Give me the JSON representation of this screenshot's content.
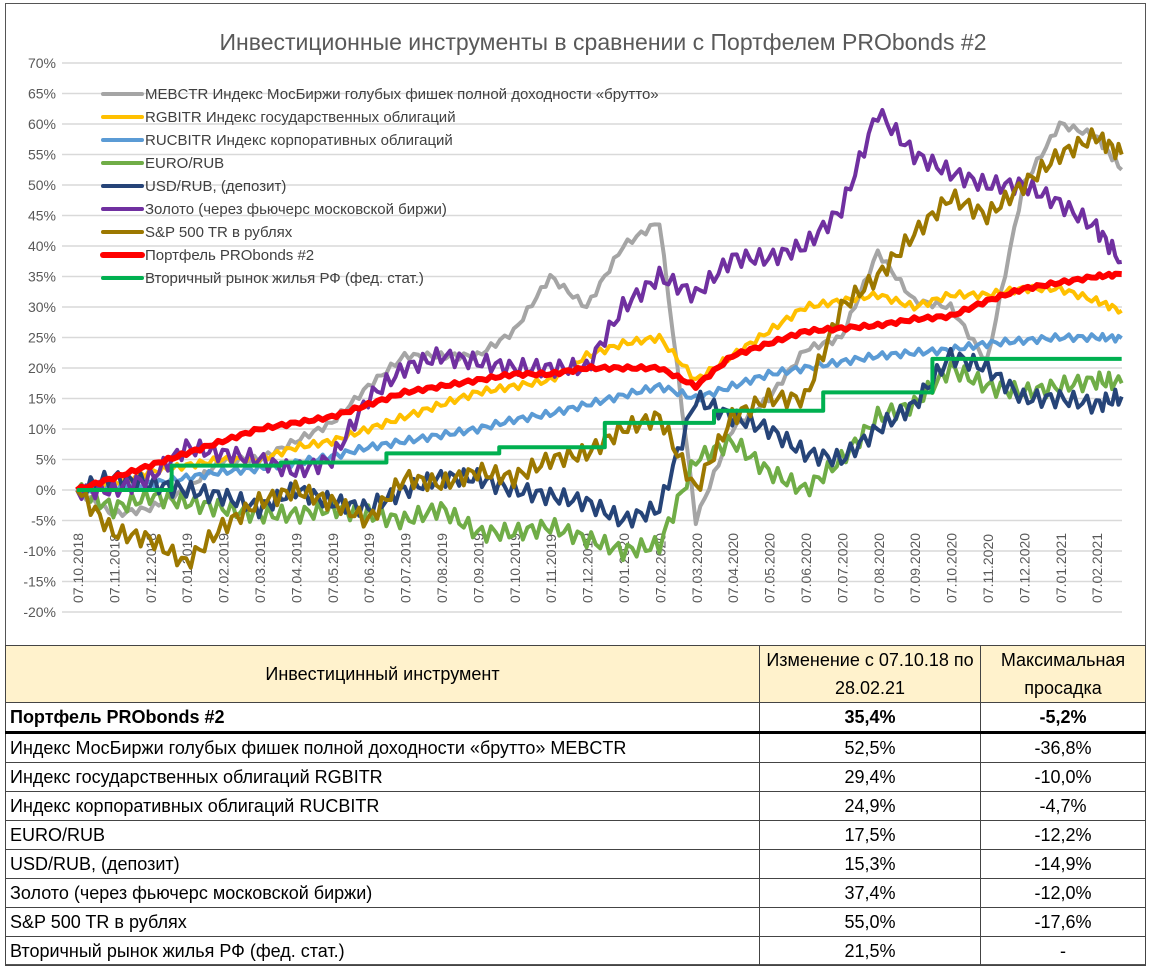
{
  "chart_data": {
    "type": "line",
    "title": "Инвестиционные инструменты в сравнении с Портфелем PRObonds #2",
    "ylim": [
      -20,
      70
    ],
    "yticks": [
      "70%",
      "65%",
      "60%",
      "55%",
      "50%",
      "45%",
      "40%",
      "35%",
      "30%",
      "25%",
      "20%",
      "15%",
      "10%",
      "5%",
      "0%",
      "-5%",
      "-10%",
      "-15%",
      "-20%"
    ],
    "ytick_values": [
      70,
      65,
      60,
      55,
      50,
      45,
      40,
      35,
      30,
      25,
      20,
      15,
      10,
      5,
      0,
      -5,
      -10,
      -15,
      -20
    ],
    "xticks": [
      "07.10.2018",
      "07.11.2018",
      "07.12.2018",
      "07.01.2019",
      "07.02.2019",
      "07.03.2019",
      "07.04.2019",
      "07.05.2019",
      "07.06.2019",
      "07.07.2019",
      "07.08.2019",
      "07.09.2019",
      "07.10.2019",
      "07.11.2019",
      "07.12.2019",
      "07.01.2020",
      "07.02.2020",
      "07.03.2020",
      "07.04.2020",
      "07.05.2020",
      "07.06.2020",
      "07.07.2020",
      "07.08.2020",
      "07.09.2020",
      "07.10.2020",
      "07.11.2020",
      "07.12.2020",
      "07.01.2021",
      "07.02.2021"
    ],
    "x_months": [
      0,
      1,
      2,
      3,
      4,
      5,
      6,
      7,
      8,
      9,
      10,
      11,
      12,
      13,
      14,
      15,
      16,
      17,
      18,
      19,
      20,
      21,
      22,
      23,
      24,
      25,
      26,
      27,
      28,
      28.7
    ],
    "grid": true,
    "legend_position": "top-left",
    "series": [
      {
        "name": "MEBCTR Индекс МосБиржи голубых фишек полной доходности «брутто»",
        "color": "#a5a5a5",
        "values": [
          0,
          -4,
          -3,
          0,
          5,
          5,
          8,
          11,
          17,
          22,
          22,
          22,
          26,
          35,
          30,
          40,
          44,
          -5,
          10,
          15,
          23,
          25,
          39,
          31,
          30,
          21,
          50,
          60,
          58,
          52.5
        ]
      },
      {
        "name": "RGBITR Индекс государственных облигаций",
        "color": "#ffc000",
        "values": [
          0,
          1,
          3,
          4,
          5,
          5,
          7,
          8,
          10,
          12,
          14,
          16,
          17,
          18,
          22,
          24,
          25,
          18,
          22,
          26,
          30,
          31,
          32,
          30,
          32,
          32,
          33,
          33,
          31,
          29.4
        ]
      },
      {
        "name": "RUCBITR Индекс корпоративных облигаций",
        "color": "#5b9bd5",
        "values": [
          0,
          0.5,
          1,
          2,
          3,
          3.5,
          4.5,
          5.5,
          7,
          8,
          9,
          10,
          11.5,
          12.5,
          14,
          15.5,
          17,
          15,
          17,
          19,
          20,
          21,
          22,
          22.5,
          23,
          24,
          24.5,
          25,
          25,
          24.9
        ]
      },
      {
        "name": "EURO/RUB",
        "color": "#70ad47",
        "values": [
          0,
          -3,
          -1,
          -2,
          -3,
          -4,
          -4,
          -3,
          -4,
          -5,
          -3,
          -7,
          -7,
          -6,
          -8,
          -10,
          -9,
          5,
          8,
          3,
          0,
          5,
          12,
          14,
          20,
          17,
          16,
          17,
          18,
          17.5
        ]
      },
      {
        "name": "USD/RUB, (депозит)",
        "color": "#264478",
        "values": [
          0,
          2,
          1,
          0,
          -1,
          -3,
          0,
          -2,
          -3,
          0,
          2,
          2,
          0,
          -1,
          -2,
          -5,
          -3,
          15,
          12,
          10,
          6,
          5,
          10,
          14,
          22,
          20,
          15,
          15,
          14,
          15.3
        ]
      },
      {
        "name": "Золото (через фьючерс московской биржи)",
        "color": "#7030a0",
        "values": [
          0,
          0,
          2,
          7,
          6,
          5,
          3,
          5,
          15,
          20,
          22,
          21,
          20,
          20,
          20,
          30,
          35,
          32,
          38,
          38,
          40,
          46,
          62,
          55,
          52,
          50,
          50,
          47,
          43,
          37.4
        ]
      },
      {
        "name": "S&P 500 TR в рублях",
        "color": "#9c7800",
        "values": [
          0,
          -7,
          -8,
          -12,
          -6,
          -2,
          0,
          -2,
          -5,
          2,
          1,
          3,
          2,
          5,
          6,
          10,
          12,
          0,
          12,
          15,
          15,
          30,
          35,
          42,
          48,
          45,
          50,
          55,
          58,
          55
        ]
      },
      {
        "name": "Портфель PRObonds #2",
        "color": "#ff0000",
        "values": [
          0,
          2,
          4,
          6,
          8,
          10,
          11,
          12,
          14,
          16,
          17,
          18,
          19,
          19,
          20,
          20,
          20,
          17,
          22,
          24,
          26,
          26.5,
          27,
          28,
          28.5,
          31,
          33,
          34,
          35,
          35.4
        ]
      },
      {
        "name": "Вторичный рынок жилья РФ (фед. стат.)",
        "color": "#00b050",
        "step": true,
        "values": [
          [
            0,
            0
          ],
          [
            2.6,
            0
          ],
          [
            2.6,
            4
          ],
          [
            5.6,
            4
          ],
          [
            5.6,
            4.5
          ],
          [
            8.5,
            4.5
          ],
          [
            8.5,
            6
          ],
          [
            11.6,
            6
          ],
          [
            11.6,
            7
          ],
          [
            14.5,
            7
          ],
          [
            14.5,
            11
          ],
          [
            17.5,
            11
          ],
          [
            17.5,
            13
          ],
          [
            20.5,
            13
          ],
          [
            20.5,
            16
          ],
          [
            23.5,
            16
          ],
          [
            23.5,
            21.5
          ],
          [
            28.7,
            21.5
          ]
        ]
      }
    ]
  },
  "table": {
    "headers": [
      "Инвестицинный инструмент",
      "Изменение с 07.10.18 по 28.02.21",
      "Максимальная просадка"
    ],
    "rows": [
      [
        "Портфель PRObonds #2",
        "35,4%",
        "-5,2%"
      ],
      [
        "Индекс МосБиржи голубых фишек полной доходности «брутто» MEBCTR",
        "52,5%",
        "-36,8%"
      ],
      [
        "Индекс государственных облигаций RGBITR",
        "29,4%",
        "-10,0%"
      ],
      [
        "Индекс корпоративных облигаций RUCBITR",
        "24,9%",
        "-4,7%"
      ],
      [
        "EURO/RUB",
        "17,5%",
        "-12,2%"
      ],
      [
        "USD/RUB, (депозит)",
        "15,3%",
        "-14,9%"
      ],
      [
        "Золото (через фьючерс московской биржи)",
        "37,4%",
        "-12,0%"
      ],
      [
        "S&P 500 TR в рублях",
        "55,0%",
        "-17,6%"
      ],
      [
        "Вторичный рынок жилья РФ (фед. стат.)",
        "21,5%",
        "-"
      ]
    ]
  }
}
